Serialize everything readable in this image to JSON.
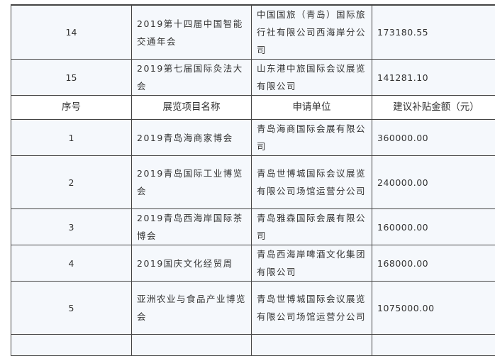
{
  "header": {
    "index": "序号",
    "name": "展览项目名称",
    "applicant": "申请单位",
    "amount": "建议补贴金额（元）"
  },
  "rows_before": [
    {
      "index": "14",
      "name": "2019第十四届中国智能交通年会",
      "applicant": "中国国旅（青岛）国际旅行社有限公司西海岸分公司",
      "amount": "173180.55"
    },
    {
      "index": "15",
      "name": "2019第七届国际灸法大会",
      "applicant": "山东港中旅国际会议展览有限公司",
      "amount": "141281.10"
    }
  ],
  "rows_after": [
    {
      "index": "1",
      "name": "2019青岛海商家博会",
      "applicant": "青岛海商国际会展有限公司",
      "amount": "360000.00"
    },
    {
      "index": "2",
      "name": "2019青岛国际工业博览会",
      "applicant": "青岛世博城国际会议展览有限公司场馆运营分公司",
      "amount": "240000.00"
    },
    {
      "index": "3",
      "name": "2019青岛西海岸国际茶博会",
      "applicant": "青岛雅森国际会展有限公司",
      "amount": "160000.00"
    },
    {
      "index": "4",
      "name": "2019国庆文化经贸周",
      "applicant": "青岛西海岸啤酒文化集团有限公司",
      "amount": "168000.00"
    },
    {
      "index": "5",
      "name": "亚洲农业与食品产业博览会",
      "applicant": "青岛世博城国际会议展览有限公司场馆运营分公司",
      "amount": "1075000.00"
    }
  ]
}
